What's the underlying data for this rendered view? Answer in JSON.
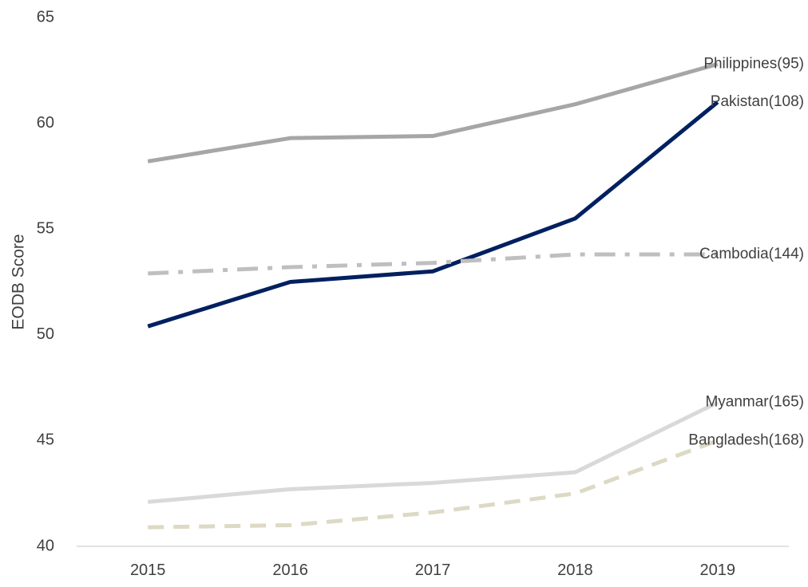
{
  "chart_data": {
    "type": "line",
    "title": "",
    "xlabel": "",
    "ylabel": "EODB Score",
    "x": [
      "2015",
      "2016",
      "2017",
      "2018",
      "2019"
    ],
    "ylim": [
      40,
      65
    ],
    "yticks": [
      40,
      45,
      50,
      55,
      60,
      65
    ],
    "grid": false,
    "legend": "none",
    "series": [
      {
        "name": "Philippines(95)",
        "values": [
          58.2,
          59.3,
          59.4,
          60.9,
          62.8
        ],
        "color": "#a6a6a6",
        "dash": "solid"
      },
      {
        "name": "Pakistan(108)",
        "values": [
          50.4,
          52.5,
          53.0,
          55.5,
          61.0
        ],
        "color": "#002060",
        "dash": "solid"
      },
      {
        "name": "Cambodia(144)",
        "values": [
          52.9,
          53.2,
          53.4,
          53.8,
          53.8
        ],
        "color": "#bfbfbf",
        "dash": "dashdot"
      },
      {
        "name": "Myanmar(165)",
        "values": [
          42.1,
          42.7,
          43.0,
          43.5,
          46.8
        ],
        "color": "#d9d9d9",
        "dash": "solid"
      },
      {
        "name": "Bangladesh(168)",
        "values": [
          40.9,
          41.0,
          41.6,
          42.5,
          45.0
        ],
        "color": "#ddd9c4",
        "dash": "dash"
      }
    ]
  }
}
